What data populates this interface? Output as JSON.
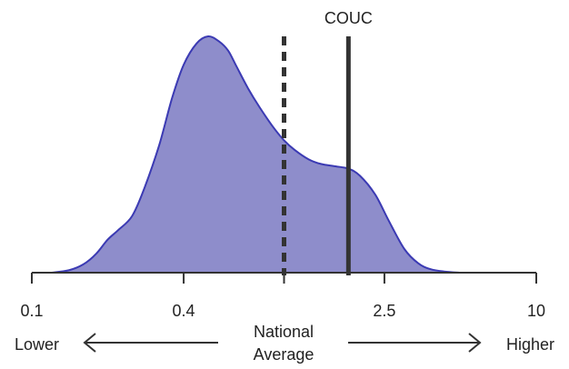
{
  "chart_data": {
    "type": "area",
    "title": "",
    "xlabel": "",
    "ylabel": "",
    "x_scale": "log",
    "xlim": [
      0.1,
      10
    ],
    "ylim": [
      0,
      1
    ],
    "x_ticks": [
      {
        "value": 0.1,
        "label": "0.1"
      },
      {
        "value": 0.4,
        "label": "0.4"
      },
      {
        "value": 1,
        "label": ""
      },
      {
        "value": 2.5,
        "label": "2.5"
      },
      {
        "value": 10,
        "label": "10"
      }
    ],
    "density": {
      "x": [
        0.12,
        0.14,
        0.16,
        0.18,
        0.2,
        0.22,
        0.25,
        0.28,
        0.32,
        0.36,
        0.4,
        0.45,
        0.5,
        0.55,
        0.6,
        0.65,
        0.72,
        0.8,
        0.9,
        1.0,
        1.1,
        1.25,
        1.4,
        1.6,
        1.8,
        2.0,
        2.3,
        2.6,
        3.0,
        3.4,
        3.8,
        4.3,
        5.0
      ],
      "y": [
        0.0,
        0.01,
        0.035,
        0.08,
        0.14,
        0.18,
        0.24,
        0.36,
        0.54,
        0.74,
        0.88,
        0.97,
        1.0,
        0.98,
        0.94,
        0.87,
        0.78,
        0.7,
        0.62,
        0.56,
        0.52,
        0.48,
        0.46,
        0.45,
        0.44,
        0.41,
        0.33,
        0.22,
        0.1,
        0.04,
        0.015,
        0.005,
        0.0
      ]
    },
    "fill_color": "#8e8dcb",
    "line_color": "#3b3ab3",
    "reference_lines": [
      {
        "label": "",
        "x": 1.0,
        "style": "dashed"
      },
      {
        "label": "COUC",
        "x": 1.8,
        "style": "solid"
      }
    ],
    "annotations": {
      "left": "Lower",
      "right": "Higher",
      "center_line1": "National",
      "center_line2": "Average"
    }
  }
}
